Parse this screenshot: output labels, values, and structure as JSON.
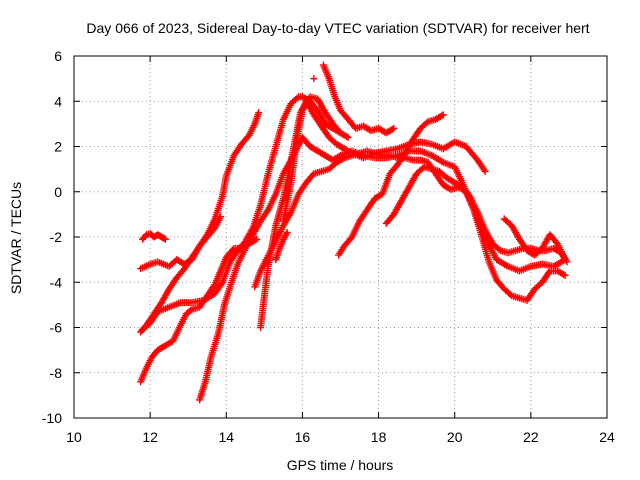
{
  "chart_data": {
    "type": "scatter",
    "title": "Day 066 of 2023, Sidereal Day-to-day VTEC variation (SDTVAR) for receiver hert",
    "xlabel": "GPS time / hours",
    "ylabel": "SDTVAR / TECUs",
    "xlim": [
      10,
      24
    ],
    "ylim": [
      -10,
      6
    ],
    "xticks": [
      10,
      12,
      14,
      16,
      18,
      20,
      22,
      24
    ],
    "yticks": [
      -10,
      -8,
      -6,
      -4,
      -2,
      0,
      2,
      4,
      6
    ],
    "xtick_labels": [
      "10",
      "12",
      "14",
      "16",
      "18",
      "20",
      "22",
      "24"
    ],
    "ytick_labels": [
      "-10",
      "-8",
      "-6",
      "-4",
      "-2",
      "0",
      "2",
      "4",
      "6"
    ],
    "grid": true,
    "legend": "none",
    "marker": "+",
    "color": "#ff0000",
    "series": [
      {
        "x": [
          11.8,
          11.9,
          12.0,
          12.1,
          12.2,
          12.3,
          12.4
        ],
        "y": [
          -2.1,
          -1.9,
          -1.85,
          -2.0,
          -1.9,
          -2.0,
          -2.1
        ]
      },
      {
        "x": [
          11.75,
          12.0,
          12.2,
          12.5,
          12.7,
          12.9,
          13.1,
          13.3,
          13.5,
          13.7,
          13.9,
          14.0,
          14.2,
          14.4,
          14.6,
          14.75,
          14.85
        ],
        "y": [
          -3.4,
          -3.2,
          -3.1,
          -3.3,
          -3.0,
          -3.2,
          -3.0,
          -2.4,
          -1.9,
          -1.2,
          -0.2,
          0.7,
          1.6,
          2.1,
          2.5,
          3.0,
          3.5
        ]
      },
      {
        "x": [
          11.75,
          11.9,
          12.1,
          12.3,
          12.5,
          12.7,
          12.9,
          13.1,
          13.3,
          13.5,
          13.7,
          13.85
        ],
        "y": [
          -6.2,
          -5.9,
          -5.4,
          -4.9,
          -4.3,
          -3.8,
          -3.4,
          -2.9,
          -2.4,
          -2.0,
          -1.6,
          -1.1
        ]
      },
      {
        "x": [
          11.75,
          11.9,
          12.05,
          12.2,
          12.4,
          12.6,
          12.8,
          12.95,
          13.1,
          13.3,
          13.5,
          13.7,
          13.85,
          14.0,
          14.2,
          14.4,
          14.6,
          14.8
        ],
        "y": [
          -8.4,
          -7.8,
          -7.3,
          -7.0,
          -6.8,
          -6.6,
          -5.9,
          -5.4,
          -5.2,
          -5.1,
          -4.6,
          -4.1,
          -3.5,
          -2.9,
          -2.5,
          -2.5,
          -2.3,
          -2.1
        ]
      },
      {
        "x": [
          11.8,
          12.0,
          12.2,
          12.5,
          12.8,
          13.1,
          13.4,
          13.7,
          13.9,
          14.1,
          14.3,
          14.5,
          14.7,
          14.9,
          15.1,
          15.3,
          15.5,
          15.7,
          15.9,
          16.0,
          16.2,
          16.4,
          16.6,
          16.8,
          17.0
        ],
        "y": [
          -6.1,
          -5.8,
          -5.3,
          -5.1,
          -4.9,
          -4.9,
          -4.8,
          -4.5,
          -4.0,
          -3.1,
          -2.6,
          -2.2,
          -1.6,
          -0.6,
          0.8,
          2.0,
          3.2,
          3.9,
          4.2,
          4.2,
          4.0,
          3.6,
          3.0,
          2.8,
          2.6
        ]
      },
      {
        "x": [
          13.3,
          13.45,
          13.6,
          13.8,
          13.95,
          14.1,
          14.3,
          14.5,
          14.7,
          14.9,
          15.1,
          15.3,
          15.5,
          15.7,
          15.85,
          16.0,
          16.2,
          16.4,
          16.6,
          16.8,
          17.0,
          17.3,
          17.6,
          17.9,
          18.2,
          18.5,
          18.8,
          19.1,
          19.4,
          19.7,
          20.0,
          20.2,
          20.5,
          20.8,
          21.1,
          21.4,
          21.7,
          22.0,
          22.3,
          22.6,
          22.9
        ],
        "y": [
          -9.2,
          -8.4,
          -7.3,
          -6.2,
          -5.0,
          -4.2,
          -3.2,
          -2.5,
          -1.9,
          -1.3,
          -0.8,
          -0.1,
          0.8,
          1.4,
          1.9,
          2.4,
          2.0,
          1.8,
          1.6,
          1.4,
          1.6,
          1.8,
          1.6,
          1.5,
          1.5,
          1.6,
          1.8,
          1.8,
          1.6,
          1.3,
          1.1,
          0.4,
          -0.8,
          -2.0,
          -3.0,
          -3.3,
          -3.5,
          -3.3,
          -3.2,
          -3.3,
          -3.0
        ]
      },
      {
        "x": [
          14.9,
          15.0,
          15.1,
          15.2,
          15.3,
          15.4,
          15.5,
          15.65,
          15.8,
          15.95,
          16.1,
          16.3,
          16.5,
          16.7,
          16.9,
          17.1,
          17.3,
          17.6,
          17.9,
          18.2,
          18.5,
          18.8,
          19.1,
          19.4,
          19.7,
          20.0,
          20.3,
          20.6,
          20.8
        ],
        "y": [
          -6.0,
          -4.6,
          -3.3,
          -2.4,
          -1.5,
          -0.9,
          -0.3,
          0.9,
          2.2,
          3.5,
          4.0,
          3.4,
          2.9,
          2.4,
          2.1,
          1.9,
          1.7,
          1.5,
          1.7,
          1.8,
          1.9,
          2.1,
          2.2,
          2.1,
          1.9,
          2.2,
          2.0,
          1.4,
          0.9
        ]
      },
      {
        "x": [
          14.75,
          14.9,
          15.05,
          15.2,
          15.35,
          15.5,
          15.7,
          15.9,
          16.1,
          16.3,
          16.5,
          16.7,
          16.9,
          17.1,
          17.3,
          17.5,
          17.7,
          17.9,
          18.1,
          18.3,
          18.5,
          18.7,
          18.9,
          19.1,
          19.3,
          19.5,
          19.7,
          19.9,
          20.1,
          20.3,
          20.5,
          20.7,
          20.9,
          21.1,
          21.3,
          21.5,
          21.7,
          21.9,
          22.1,
          22.3,
          22.5,
          22.7,
          22.9
        ],
        "y": [
          -4.2,
          -3.5,
          -3.0,
          -2.5,
          -2.0,
          -1.5,
          -0.9,
          -0.1,
          0.4,
          0.8,
          0.9,
          1.0,
          1.3,
          1.5,
          1.6,
          1.7,
          1.8,
          1.7,
          1.6,
          1.6,
          1.5,
          1.5,
          1.4,
          1.4,
          1.3,
          0.8,
          0.3,
          0.1,
          0.2,
          0.0,
          -0.8,
          -1.9,
          -3.1,
          -3.9,
          -4.3,
          -4.6,
          -4.7,
          -4.8,
          -4.3,
          -4.0,
          -3.5,
          -3.5,
          -3.7
        ]
      },
      {
        "x": [
          15.3,
          15.4,
          15.5,
          15.6
        ],
        "y": [
          -3.0,
          -2.5,
          -2.1,
          -1.8
        ]
      },
      {
        "x": [
          15.5,
          15.7,
          15.85,
          16.0,
          16.2,
          16.4,
          16.6,
          16.8,
          17.0,
          17.2
        ],
        "y": [
          -1.3,
          0.4,
          2.3,
          3.6,
          4.2,
          4.1,
          3.5,
          3.0,
          2.6,
          2.4
        ]
      },
      {
        "x": [
          16.3
        ],
        "y": [
          5.0
        ]
      },
      {
        "x": [
          16.55,
          16.7,
          16.85,
          17.0,
          17.2,
          17.4,
          17.6,
          17.8,
          18.0,
          18.2,
          18.4
        ],
        "y": [
          5.6,
          5.0,
          4.2,
          3.6,
          3.2,
          2.8,
          2.9,
          2.7,
          2.8,
          2.6,
          2.8
        ]
      },
      {
        "x": [
          16.95,
          17.1,
          17.3,
          17.5,
          17.7,
          17.9,
          18.1,
          18.3,
          18.5,
          18.7,
          18.9,
          19.1,
          19.3,
          19.5,
          19.7
        ],
        "y": [
          -2.8,
          -2.4,
          -2.0,
          -1.3,
          -0.8,
          -0.3,
          -0.1,
          0.8,
          1.2,
          1.7,
          2.3,
          2.8,
          3.1,
          3.2,
          3.4
        ]
      },
      {
        "x": [
          18.2,
          18.4,
          18.6,
          18.8,
          19.0,
          19.2,
          19.4,
          19.6,
          19.8,
          20.0,
          20.2,
          20.4,
          20.6,
          20.8,
          21.0,
          21.2,
          21.4,
          21.6,
          21.8,
          22.0,
          22.2,
          22.4,
          22.6,
          22.8,
          22.95
        ],
        "y": [
          -1.4,
          -1.0,
          -0.4,
          0.2,
          0.8,
          1.1,
          1.0,
          0.9,
          0.6,
          0.4,
          0.2,
          -0.2,
          -0.9,
          -1.7,
          -2.3,
          -2.6,
          -2.7,
          -2.6,
          -2.5,
          -2.5,
          -2.6,
          -2.6,
          -2.5,
          -2.7,
          -3.1
        ]
      },
      {
        "x": [
          21.3,
          21.5,
          21.7,
          21.9,
          22.1,
          22.3,
          22.5,
          22.7,
          22.9
        ],
        "y": [
          -1.2,
          -1.5,
          -2.1,
          -2.6,
          -2.8,
          -2.5,
          -1.9,
          -2.3,
          -3.0
        ]
      }
    ]
  }
}
